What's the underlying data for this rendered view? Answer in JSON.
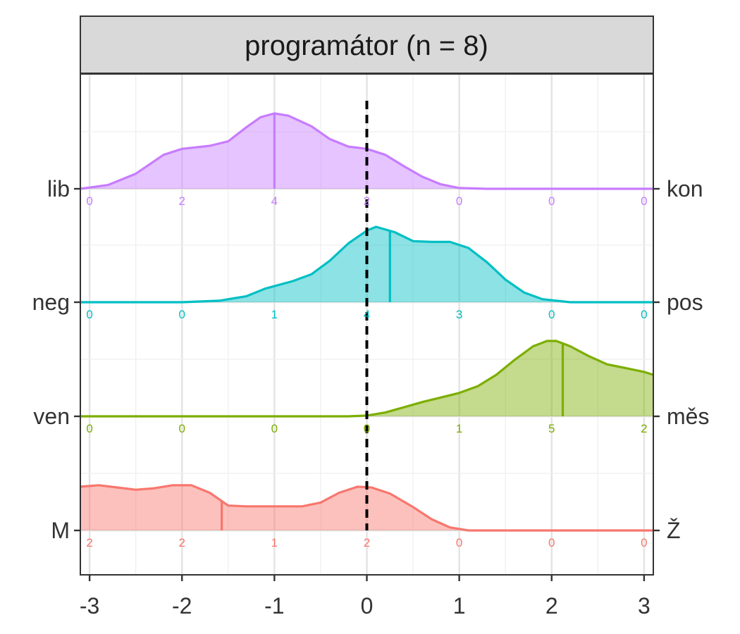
{
  "chart_data": {
    "type": "ridgeline",
    "facet_title": "programátor (n = 8)",
    "x_ticks": [
      -3,
      -2,
      -1,
      0,
      1,
      2,
      3
    ],
    "x_tick_labels": [
      "-3",
      "-2",
      "-1",
      "0",
      "1",
      "2",
      "3"
    ],
    "xlim": [
      -3.1,
      3.1
    ],
    "reference_line_x": 0,
    "grid": true,
    "series": [
      {
        "left_label": "lib",
        "right_label": "kon",
        "color": "#C77CFF",
        "median": -1.0,
        "counts": [
          0,
          2,
          4,
          2,
          0,
          0,
          0
        ],
        "density": [
          [
            -3.1,
            0.0
          ],
          [
            -2.8,
            0.05
          ],
          [
            -2.5,
            0.2
          ],
          [
            -2.2,
            0.45
          ],
          [
            -2.0,
            0.53
          ],
          [
            -1.7,
            0.57
          ],
          [
            -1.5,
            0.63
          ],
          [
            -1.3,
            0.82
          ],
          [
            -1.15,
            0.95
          ],
          [
            -1.0,
            1.0
          ],
          [
            -0.85,
            0.97
          ],
          [
            -0.6,
            0.83
          ],
          [
            -0.4,
            0.66
          ],
          [
            -0.2,
            0.56
          ],
          [
            0.0,
            0.53
          ],
          [
            0.2,
            0.45
          ],
          [
            0.4,
            0.3
          ],
          [
            0.6,
            0.16
          ],
          [
            0.8,
            0.06
          ],
          [
            1.0,
            0.01
          ],
          [
            1.3,
            0.0
          ],
          [
            3.1,
            0.0
          ]
        ]
      },
      {
        "left_label": "neg",
        "right_label": "pos",
        "color": "#00BFC4",
        "median": 0.25,
        "counts": [
          0,
          0,
          1,
          4,
          3,
          0,
          0
        ],
        "density": [
          [
            -3.1,
            0.0
          ],
          [
            -2.0,
            0.0
          ],
          [
            -1.6,
            0.02
          ],
          [
            -1.3,
            0.08
          ],
          [
            -1.1,
            0.18
          ],
          [
            -0.8,
            0.28
          ],
          [
            -0.6,
            0.37
          ],
          [
            -0.4,
            0.55
          ],
          [
            -0.2,
            0.78
          ],
          [
            0.0,
            0.95
          ],
          [
            0.1,
            1.0
          ],
          [
            0.3,
            0.93
          ],
          [
            0.5,
            0.81
          ],
          [
            0.7,
            0.8
          ],
          [
            0.9,
            0.8
          ],
          [
            1.1,
            0.72
          ],
          [
            1.3,
            0.53
          ],
          [
            1.5,
            0.3
          ],
          [
            1.7,
            0.13
          ],
          [
            1.9,
            0.04
          ],
          [
            2.2,
            0.0
          ],
          [
            3.1,
            0.0
          ]
        ]
      },
      {
        "left_label": "ven",
        "right_label": "měs",
        "color": "#7CAE00",
        "median": 2.12,
        "counts": [
          0,
          0,
          0,
          0,
          1,
          5,
          2
        ],
        "density": [
          [
            -3.1,
            0.0
          ],
          [
            -0.5,
            0.0
          ],
          [
            -0.2,
            0.0
          ],
          [
            0.0,
            0.01
          ],
          [
            0.2,
            0.05
          ],
          [
            0.4,
            0.12
          ],
          [
            0.6,
            0.19
          ],
          [
            0.8,
            0.25
          ],
          [
            1.0,
            0.31
          ],
          [
            1.2,
            0.4
          ],
          [
            1.4,
            0.55
          ],
          [
            1.6,
            0.75
          ],
          [
            1.8,
            0.93
          ],
          [
            1.95,
            1.0
          ],
          [
            2.05,
            1.0
          ],
          [
            2.2,
            0.93
          ],
          [
            2.4,
            0.8
          ],
          [
            2.6,
            0.69
          ],
          [
            2.8,
            0.64
          ],
          [
            3.0,
            0.59
          ],
          [
            3.1,
            0.55
          ]
        ]
      },
      {
        "left_label": "M",
        "right_label": "Ž",
        "color": "#F8766D",
        "median": -1.57,
        "counts": [
          2,
          2,
          1,
          2,
          0,
          0,
          0
        ],
        "density": [
          [
            -3.1,
            0.58
          ],
          [
            -2.9,
            0.6
          ],
          [
            -2.7,
            0.57
          ],
          [
            -2.5,
            0.54
          ],
          [
            -2.3,
            0.56
          ],
          [
            -2.1,
            0.6
          ],
          [
            -1.9,
            0.6
          ],
          [
            -1.7,
            0.5
          ],
          [
            -1.5,
            0.33
          ],
          [
            -1.3,
            0.32
          ],
          [
            -1.0,
            0.32
          ],
          [
            -0.7,
            0.32
          ],
          [
            -0.5,
            0.37
          ],
          [
            -0.3,
            0.5
          ],
          [
            -0.1,
            0.58
          ],
          [
            0.05,
            0.57
          ],
          [
            0.25,
            0.49
          ],
          [
            0.5,
            0.31
          ],
          [
            0.7,
            0.15
          ],
          [
            0.9,
            0.04
          ],
          [
            1.1,
            0.0
          ],
          [
            3.1,
            0.0
          ]
        ]
      }
    ]
  }
}
